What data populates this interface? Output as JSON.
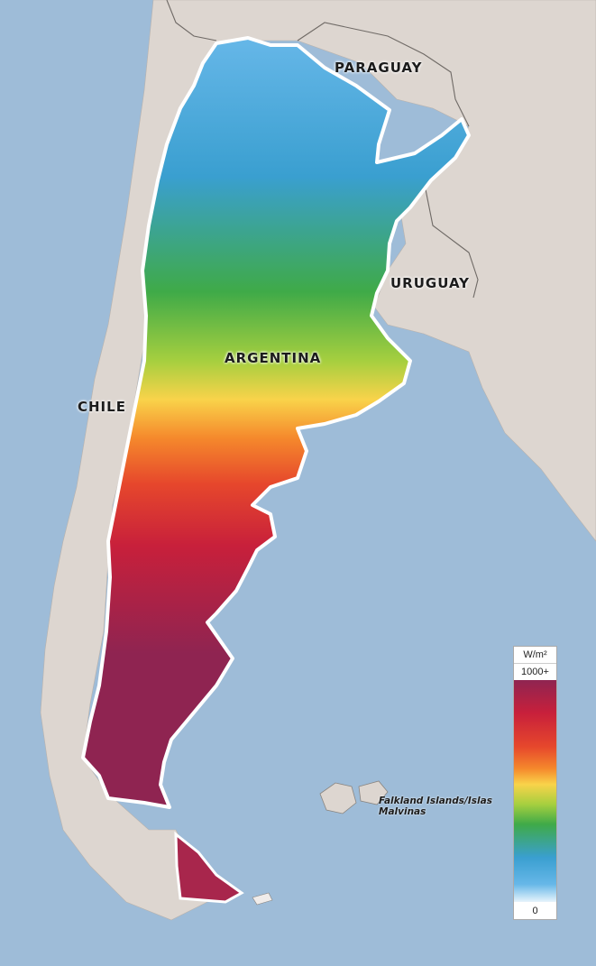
{
  "labels": {
    "paraguay": "PARAGUAY",
    "uruguay": "URUGUAY",
    "argentina": "ARGENTINA",
    "chile": "CHILE",
    "falklands": "Falkland Islands/Islas Malvinas"
  },
  "legend": {
    "unit": "W/m²",
    "max_label": "1000+",
    "min_label": "0",
    "colors": [
      "#8f2451",
      "#c8203b",
      "#e6472c",
      "#f5892c",
      "#f9d34a",
      "#a6cf3f",
      "#3faa48",
      "#3a9fd0",
      "#66b7e8",
      "#e7f4fb"
    ]
  },
  "colors": {
    "ocean": "#9ebcd8",
    "land": "#ddd6d0",
    "border": "#ffffff"
  }
}
